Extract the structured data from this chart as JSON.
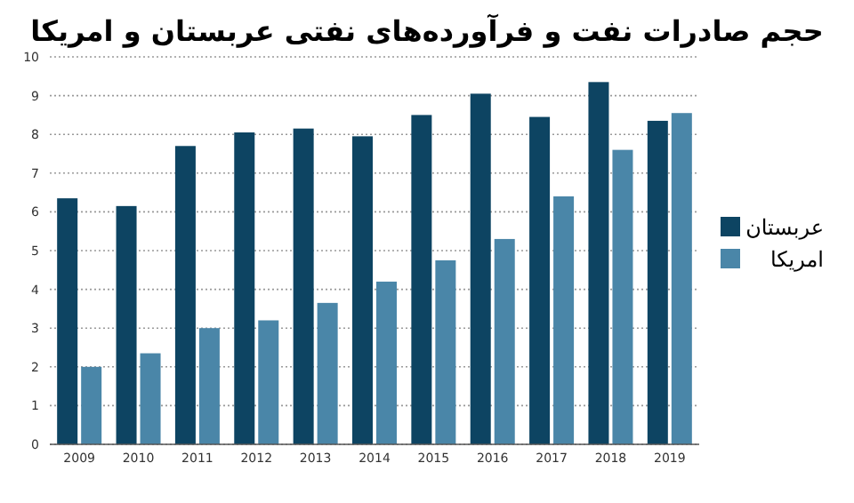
{
  "chart_data": {
    "type": "bar",
    "title": "حجم صادرات نفت و فرآورده‌های نفتی عربستان و امریکا",
    "categories": [
      "2009",
      "2010",
      "2011",
      "2012",
      "2013",
      "2014",
      "2015",
      "2016",
      "2017",
      "2018",
      "2019"
    ],
    "series": [
      {
        "name": "عربستان",
        "color": "#0d4462",
        "values": [
          6.35,
          6.15,
          7.7,
          8.05,
          8.15,
          7.95,
          8.5,
          9.05,
          8.45,
          9.35,
          8.35
        ]
      },
      {
        "name": "امریکا",
        "color": "#4a86a8",
        "values": [
          2.0,
          2.35,
          3.0,
          3.2,
          3.65,
          4.2,
          4.75,
          5.3,
          6.4,
          7.6,
          8.55
        ]
      }
    ],
    "ylim": [
      0,
      10
    ],
    "yticks": [
      0,
      1,
      2,
      3,
      4,
      5,
      6,
      7,
      8,
      9,
      10
    ],
    "grid": "y",
    "legend": "right"
  }
}
